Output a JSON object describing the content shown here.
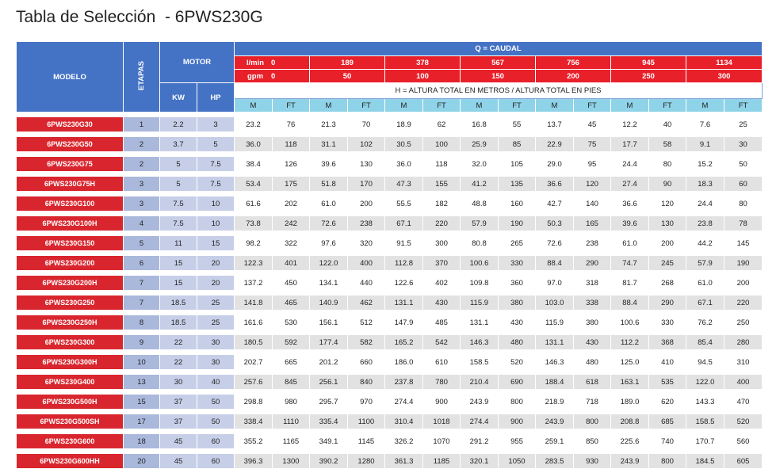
{
  "title": "Tabla de Selección  - 6PWS230G",
  "headers": {
    "modelo": "MODELO",
    "etapas": "ETAPAS",
    "motor": "MOTOR",
    "kw": "KW",
    "hp": "HP",
    "caudal": "Q = CAUDAL",
    "lmin_label": "l/min",
    "gpm_label": "gpm",
    "lmin": [
      "0",
      "189",
      "378",
      "567",
      "756",
      "945",
      "1134"
    ],
    "gpm": [
      "0",
      "50",
      "100",
      "150",
      "200",
      "250",
      "300"
    ],
    "altura": "H = ALTURA TOTAL EN METROS / ALTURA TOTAL EN PIES",
    "m": "M",
    "ft": "FT"
  },
  "rows": [
    {
      "modelo": "6PWS230G30",
      "etapas": "1",
      "kw": "2.2",
      "hp": "3",
      "v": [
        "23.2",
        "76",
        "21.3",
        "70",
        "18.9",
        "62",
        "16.8",
        "55",
        "13.7",
        "45",
        "12.2",
        "40",
        "7.6",
        "25"
      ]
    },
    {
      "modelo": "6PWS230G50",
      "etapas": "2",
      "kw": "3.7",
      "hp": "5",
      "v": [
        "36.0",
        "118",
        "31.1",
        "102",
        "30.5",
        "100",
        "25.9",
        "85",
        "22.9",
        "75",
        "17.7",
        "58",
        "9.1",
        "30"
      ]
    },
    {
      "modelo": "6PWS230G75",
      "etapas": "2",
      "kw": "5",
      "hp": "7.5",
      "v": [
        "38.4",
        "126",
        "39.6",
        "130",
        "36.0",
        "118",
        "32.0",
        "105",
        "29.0",
        "95",
        "24.4",
        "80",
        "15.2",
        "50"
      ]
    },
    {
      "modelo": "6PWS230G75H",
      "etapas": "3",
      "kw": "5",
      "hp": "7.5",
      "v": [
        "53.4",
        "175",
        "51.8",
        "170",
        "47.3",
        "155",
        "41.2",
        "135",
        "36.6",
        "120",
        "27.4",
        "90",
        "18.3",
        "60"
      ]
    },
    {
      "modelo": "6PWS230G100",
      "etapas": "3",
      "kw": "7.5",
      "hp": "10",
      "v": [
        "61.6",
        "202",
        "61.0",
        "200",
        "55.5",
        "182",
        "48.8",
        "160",
        "42.7",
        "140",
        "36.6",
        "120",
        "24.4",
        "80"
      ]
    },
    {
      "modelo": "6PWS230G100H",
      "etapas": "4",
      "kw": "7.5",
      "hp": "10",
      "v": [
        "73.8",
        "242",
        "72.6",
        "238",
        "67.1",
        "220",
        "57.9",
        "190",
        "50.3",
        "165",
        "39.6",
        "130",
        "23.8",
        "78"
      ]
    },
    {
      "modelo": "6PWS230G150",
      "etapas": "5",
      "kw": "11",
      "hp": "15",
      "v": [
        "98.2",
        "322",
        "97.6",
        "320",
        "91.5",
        "300",
        "80.8",
        "265",
        "72.6",
        "238",
        "61.0",
        "200",
        "44.2",
        "145"
      ]
    },
    {
      "modelo": "6PWS230G200",
      "etapas": "6",
      "kw": "15",
      "hp": "20",
      "v": [
        "122.3",
        "401",
        "122.0",
        "400",
        "112.8",
        "370",
        "100.6",
        "330",
        "88.4",
        "290",
        "74.7",
        "245",
        "57.9",
        "190"
      ]
    },
    {
      "modelo": "6PWS230G200H",
      "etapas": "7",
      "kw": "15",
      "hp": "20",
      "v": [
        "137.2",
        "450",
        "134.1",
        "440",
        "122.6",
        "402",
        "109.8",
        "360",
        "97.0",
        "318",
        "81.7",
        "268",
        "61.0",
        "200"
      ]
    },
    {
      "modelo": "6PWS230G250",
      "etapas": "7",
      "kw": "18.5",
      "hp": "25",
      "v": [
        "141.8",
        "465",
        "140.9",
        "462",
        "131.1",
        "430",
        "115.9",
        "380",
        "103.0",
        "338",
        "88.4",
        "290",
        "67.1",
        "220"
      ]
    },
    {
      "modelo": "6PWS230G250H",
      "etapas": "8",
      "kw": "18.5",
      "hp": "25",
      "v": [
        "161.6",
        "530",
        "156.1",
        "512",
        "147.9",
        "485",
        "131.1",
        "430",
        "115.9",
        "380",
        "100.6",
        "330",
        "76.2",
        "250"
      ]
    },
    {
      "modelo": "6PWS230G300",
      "etapas": "9",
      "kw": "22",
      "hp": "30",
      "v": [
        "180.5",
        "592",
        "177.4",
        "582",
        "165.2",
        "542",
        "146.3",
        "480",
        "131.1",
        "430",
        "112.2",
        "368",
        "85.4",
        "280"
      ]
    },
    {
      "modelo": "6PWS230G300H",
      "etapas": "10",
      "kw": "22",
      "hp": "30",
      "v": [
        "202.7",
        "665",
        "201.2",
        "660",
        "186.0",
        "610",
        "158.5",
        "520",
        "146.3",
        "480",
        "125.0",
        "410",
        "94.5",
        "310"
      ]
    },
    {
      "modelo": "6PWS230G400",
      "etapas": "13",
      "kw": "30",
      "hp": "40",
      "v": [
        "257.6",
        "845",
        "256.1",
        "840",
        "237.8",
        "780",
        "210.4",
        "690",
        "188.4",
        "618",
        "163.1",
        "535",
        "122.0",
        "400"
      ]
    },
    {
      "modelo": "6PWS230G500H",
      "etapas": "15",
      "kw": "37",
      "hp": "50",
      "v": [
        "298.8",
        "980",
        "295.7",
        "970",
        "274.4",
        "900",
        "243.9",
        "800",
        "218.9",
        "718",
        "189.0",
        "620",
        "143.3",
        "470"
      ]
    },
    {
      "modelo": "6PWS230G500SH",
      "etapas": "17",
      "kw": "37",
      "hp": "50",
      "v": [
        "338.4",
        "1110",
        "335.4",
        "1100",
        "310.4",
        "1018",
        "274.4",
        "900",
        "243.9",
        "800",
        "208.8",
        "685",
        "158.5",
        "520"
      ]
    },
    {
      "modelo": "6PWS230G600",
      "etapas": "18",
      "kw": "45",
      "hp": "60",
      "v": [
        "355.2",
        "1165",
        "349.1",
        "1145",
        "326.2",
        "1070",
        "291.2",
        "955",
        "259.1",
        "850",
        "225.6",
        "740",
        "170.7",
        "560"
      ]
    },
    {
      "modelo": "6PWS230G600HH",
      "etapas": "20",
      "kw": "45",
      "hp": "60",
      "v": [
        "396.3",
        "1300",
        "390.2",
        "1280",
        "361.3",
        "1185",
        "320.1",
        "1050",
        "283.5",
        "930",
        "243.9",
        "800",
        "184.5",
        "605"
      ]
    }
  ]
}
